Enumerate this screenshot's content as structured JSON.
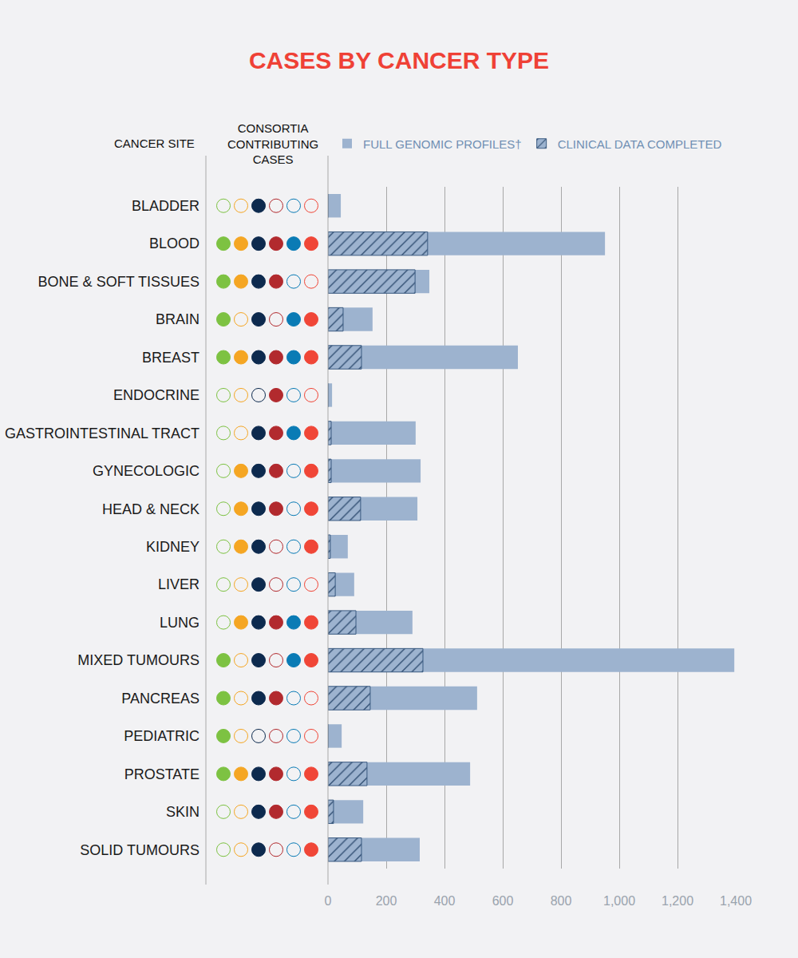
{
  "chart_data": {
    "type": "bar",
    "title": "CASES BY CANCER TYPE",
    "orientation": "horizontal",
    "grid": true,
    "legend": "top",
    "column_headers": [
      "CANCER SITE",
      "CONSORTIA CONTRIBUTING CASES"
    ],
    "categories": [
      "BLADDER",
      "BLOOD",
      "BONE & SOFT TISSUES",
      "BRAIN",
      "BREAST",
      "ENDOCRINE",
      "GASTROINTESTINAL TRACT",
      "GYNECOLOGIC",
      "HEAD & NECK",
      "KIDNEY",
      "LIVER",
      "LUNG",
      "MIXED TUMOURS",
      "PANCREAS",
      "PEDIATRIC",
      "PROSTATE",
      "SKIN",
      "SOLID TUMOURS"
    ],
    "series": [
      {
        "name": "FULL GENOMIC PROFILES†",
        "color": "#9db3cf",
        "values": [
          44,
          951,
          348,
          153,
          652,
          14,
          301,
          318,
          307,
          68,
          90,
          290,
          1395,
          512,
          47,
          488,
          121,
          315
        ]
      },
      {
        "name": "CLINICAL DATA COMPLETED",
        "color": "#9db3cf",
        "marker": "hatch",
        "values": [
          0,
          342,
          299,
          52,
          115,
          0,
          11,
          11,
          112,
          8,
          25,
          96,
          326,
          145,
          0,
          134,
          19,
          115
        ]
      }
    ],
    "xlim": [
      0,
      1400
    ],
    "xticks": [
      0,
      200,
      400,
      600,
      800,
      {
        "value": 1000,
        "label": "1,000"
      },
      {
        "value": 1200,
        "label": "1,200"
      },
      {
        "value": 1400,
        "label": "1,400"
      }
    ],
    "consortia_colors": [
      "#7dc242",
      "#f5a623",
      "#0d2a4e",
      "#b22a2e",
      "#0a7bb5",
      "#f04637"
    ],
    "consortia_membership": [
      [
        0,
        0,
        1,
        0,
        0,
        0
      ],
      [
        1,
        1,
        1,
        1,
        1,
        1
      ],
      [
        1,
        1,
        1,
        1,
        0,
        0
      ],
      [
        1,
        0,
        1,
        0,
        1,
        1
      ],
      [
        1,
        1,
        1,
        1,
        1,
        1
      ],
      [
        0,
        0,
        0,
        1,
        0,
        0
      ],
      [
        0,
        0,
        1,
        1,
        1,
        1
      ],
      [
        0,
        1,
        1,
        1,
        0,
        1
      ],
      [
        0,
        1,
        1,
        1,
        0,
        1
      ],
      [
        0,
        1,
        1,
        0,
        0,
        1
      ],
      [
        0,
        0,
        1,
        0,
        0,
        0
      ],
      [
        0,
        1,
        1,
        1,
        1,
        1
      ],
      [
        1,
        0,
        1,
        0,
        1,
        1
      ],
      [
        1,
        0,
        1,
        1,
        0,
        0
      ],
      [
        1,
        0,
        0,
        0,
        0,
        0
      ],
      [
        1,
        1,
        1,
        1,
        0,
        1
      ],
      [
        0,
        0,
        1,
        1,
        0,
        1
      ],
      [
        0,
        0,
        1,
        0,
        0,
        1
      ]
    ]
  }
}
